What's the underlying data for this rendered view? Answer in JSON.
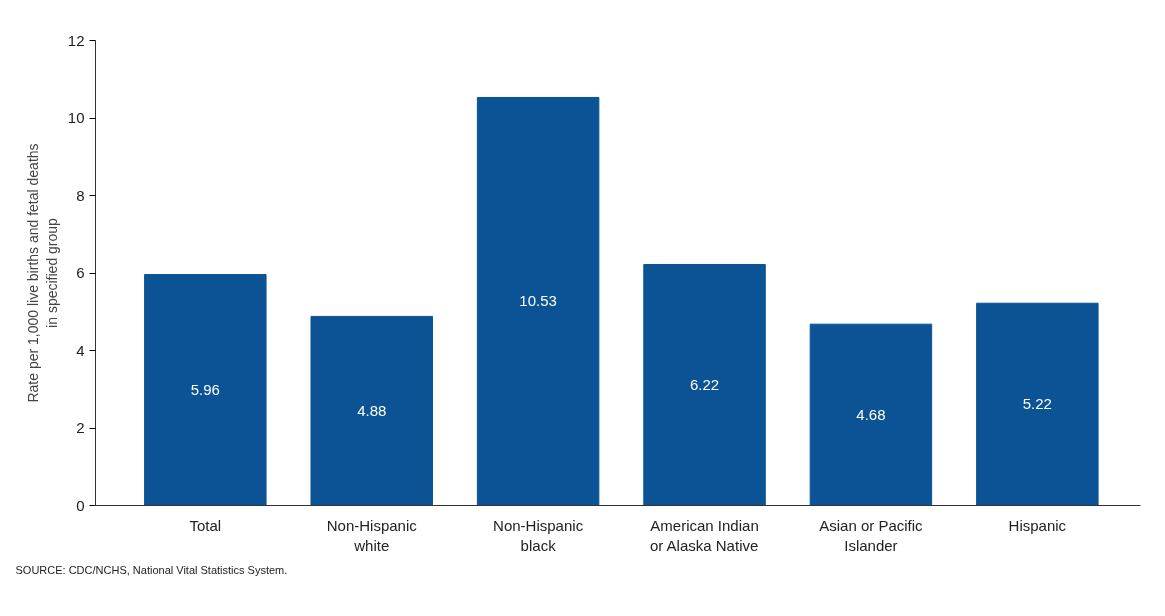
{
  "chart_data": {
    "type": "bar",
    "ylabel": "Rate per 1,000 live births and fetal deaths\nin specified group",
    "categories": [
      "Total",
      "Non-Hispanic\nwhite",
      "Non-Hispanic\nblack",
      "American Indian\nor Alaska Native",
      "Asian or Pacific\nIslander",
      "Hispanic"
    ],
    "values": [
      5.96,
      4.88,
      10.53,
      6.22,
      4.68,
      5.22
    ],
    "color": "#0b5394",
    "ylim": [
      0,
      12
    ],
    "yticks": [
      0,
      2,
      4,
      6,
      8,
      10,
      12
    ],
    "grid": false,
    "data_labels": true,
    "annotations": [
      "SOURCE: CDC/NCHS, National Vital Statistics System."
    ]
  }
}
